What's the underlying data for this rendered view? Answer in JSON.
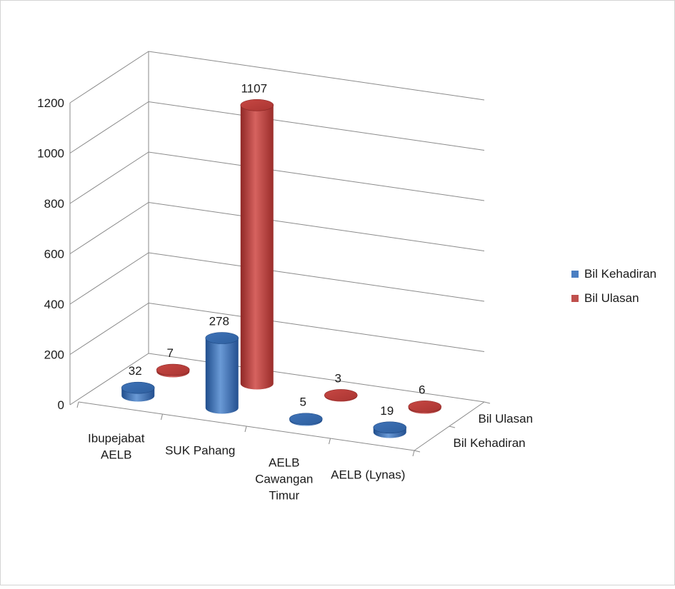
{
  "chart_data": {
    "type": "bar",
    "style": "3d-cylinder",
    "categories": [
      "Ibupejabat AELB",
      "SUK Pahang",
      "AELB Cawangan Timur",
      "AELB (Lynas)"
    ],
    "series": [
      {
        "name": "Bil Kehadiran",
        "values": [
          32,
          278,
          5,
          19
        ],
        "color": "#4a7ec2"
      },
      {
        "name": "Bil Ulasan",
        "values": [
          7,
          1107,
          3,
          6
        ],
        "color": "#c0504d"
      }
    ],
    "depth_labels": [
      "Bil Ulasan",
      "Bil Kehadiran"
    ],
    "y_ticks": [
      0,
      200,
      400,
      600,
      800,
      1000,
      1200
    ],
    "ylim": [
      0,
      1200
    ],
    "grid": true,
    "legend": {
      "position": "right",
      "items": [
        "Bil Kehadiran",
        "Bil Ulasan"
      ]
    },
    "title": "",
    "xlabel": "",
    "ylabel": ""
  }
}
